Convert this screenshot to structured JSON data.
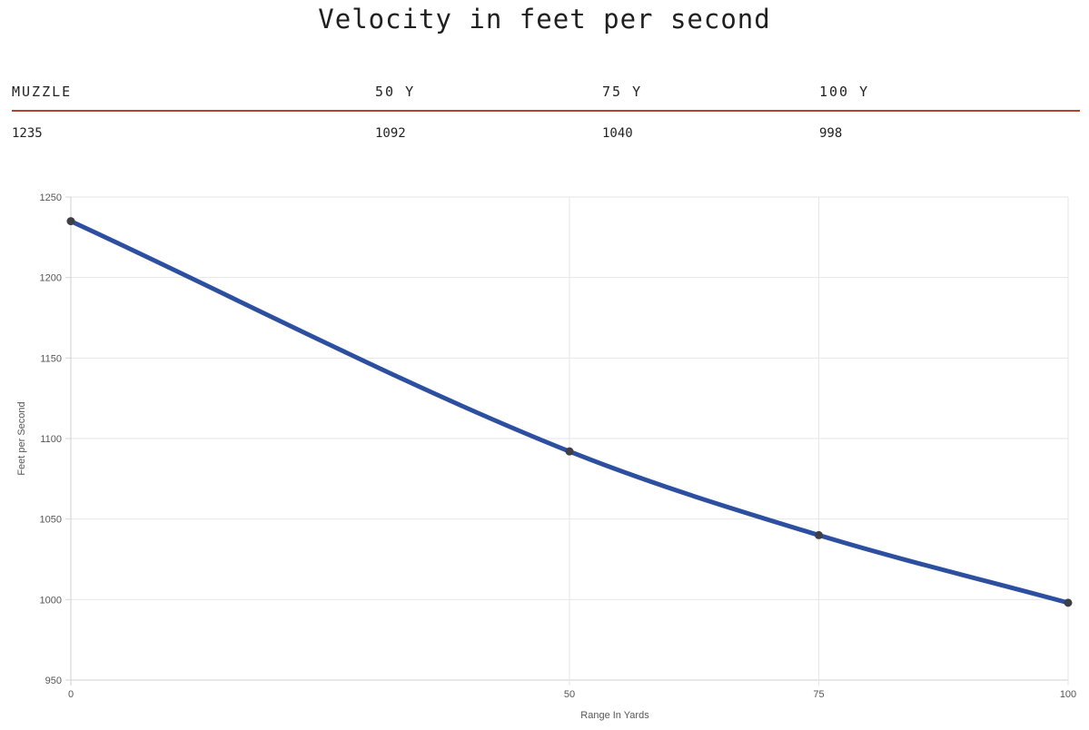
{
  "title": "Velocity in feet per second",
  "table": {
    "headers": [
      "MUZZLE",
      "50 Y",
      "75 Y",
      "100 Y"
    ],
    "values": [
      "1235",
      "1092",
      "1040",
      "998"
    ],
    "rule_color": "#b5442b"
  },
  "chart_data": {
    "type": "line",
    "x": [
      0,
      50,
      75,
      100
    ],
    "series": [
      {
        "values": [
          1235,
          1092,
          1040,
          998
        ]
      }
    ],
    "x_ticks": [
      "0",
      "50",
      "75",
      "100"
    ],
    "y_ticks": [
      "950",
      "1000",
      "1050",
      "1100",
      "1150",
      "1200",
      "1250"
    ],
    "xlabel": "Range In Yards",
    "ylabel": "Feet per Second",
    "xlim": [
      0,
      100
    ],
    "ylim": [
      950,
      1250
    ],
    "grid": true,
    "line_color": "#2c4fa0",
    "point_color": "#3f3f46"
  }
}
